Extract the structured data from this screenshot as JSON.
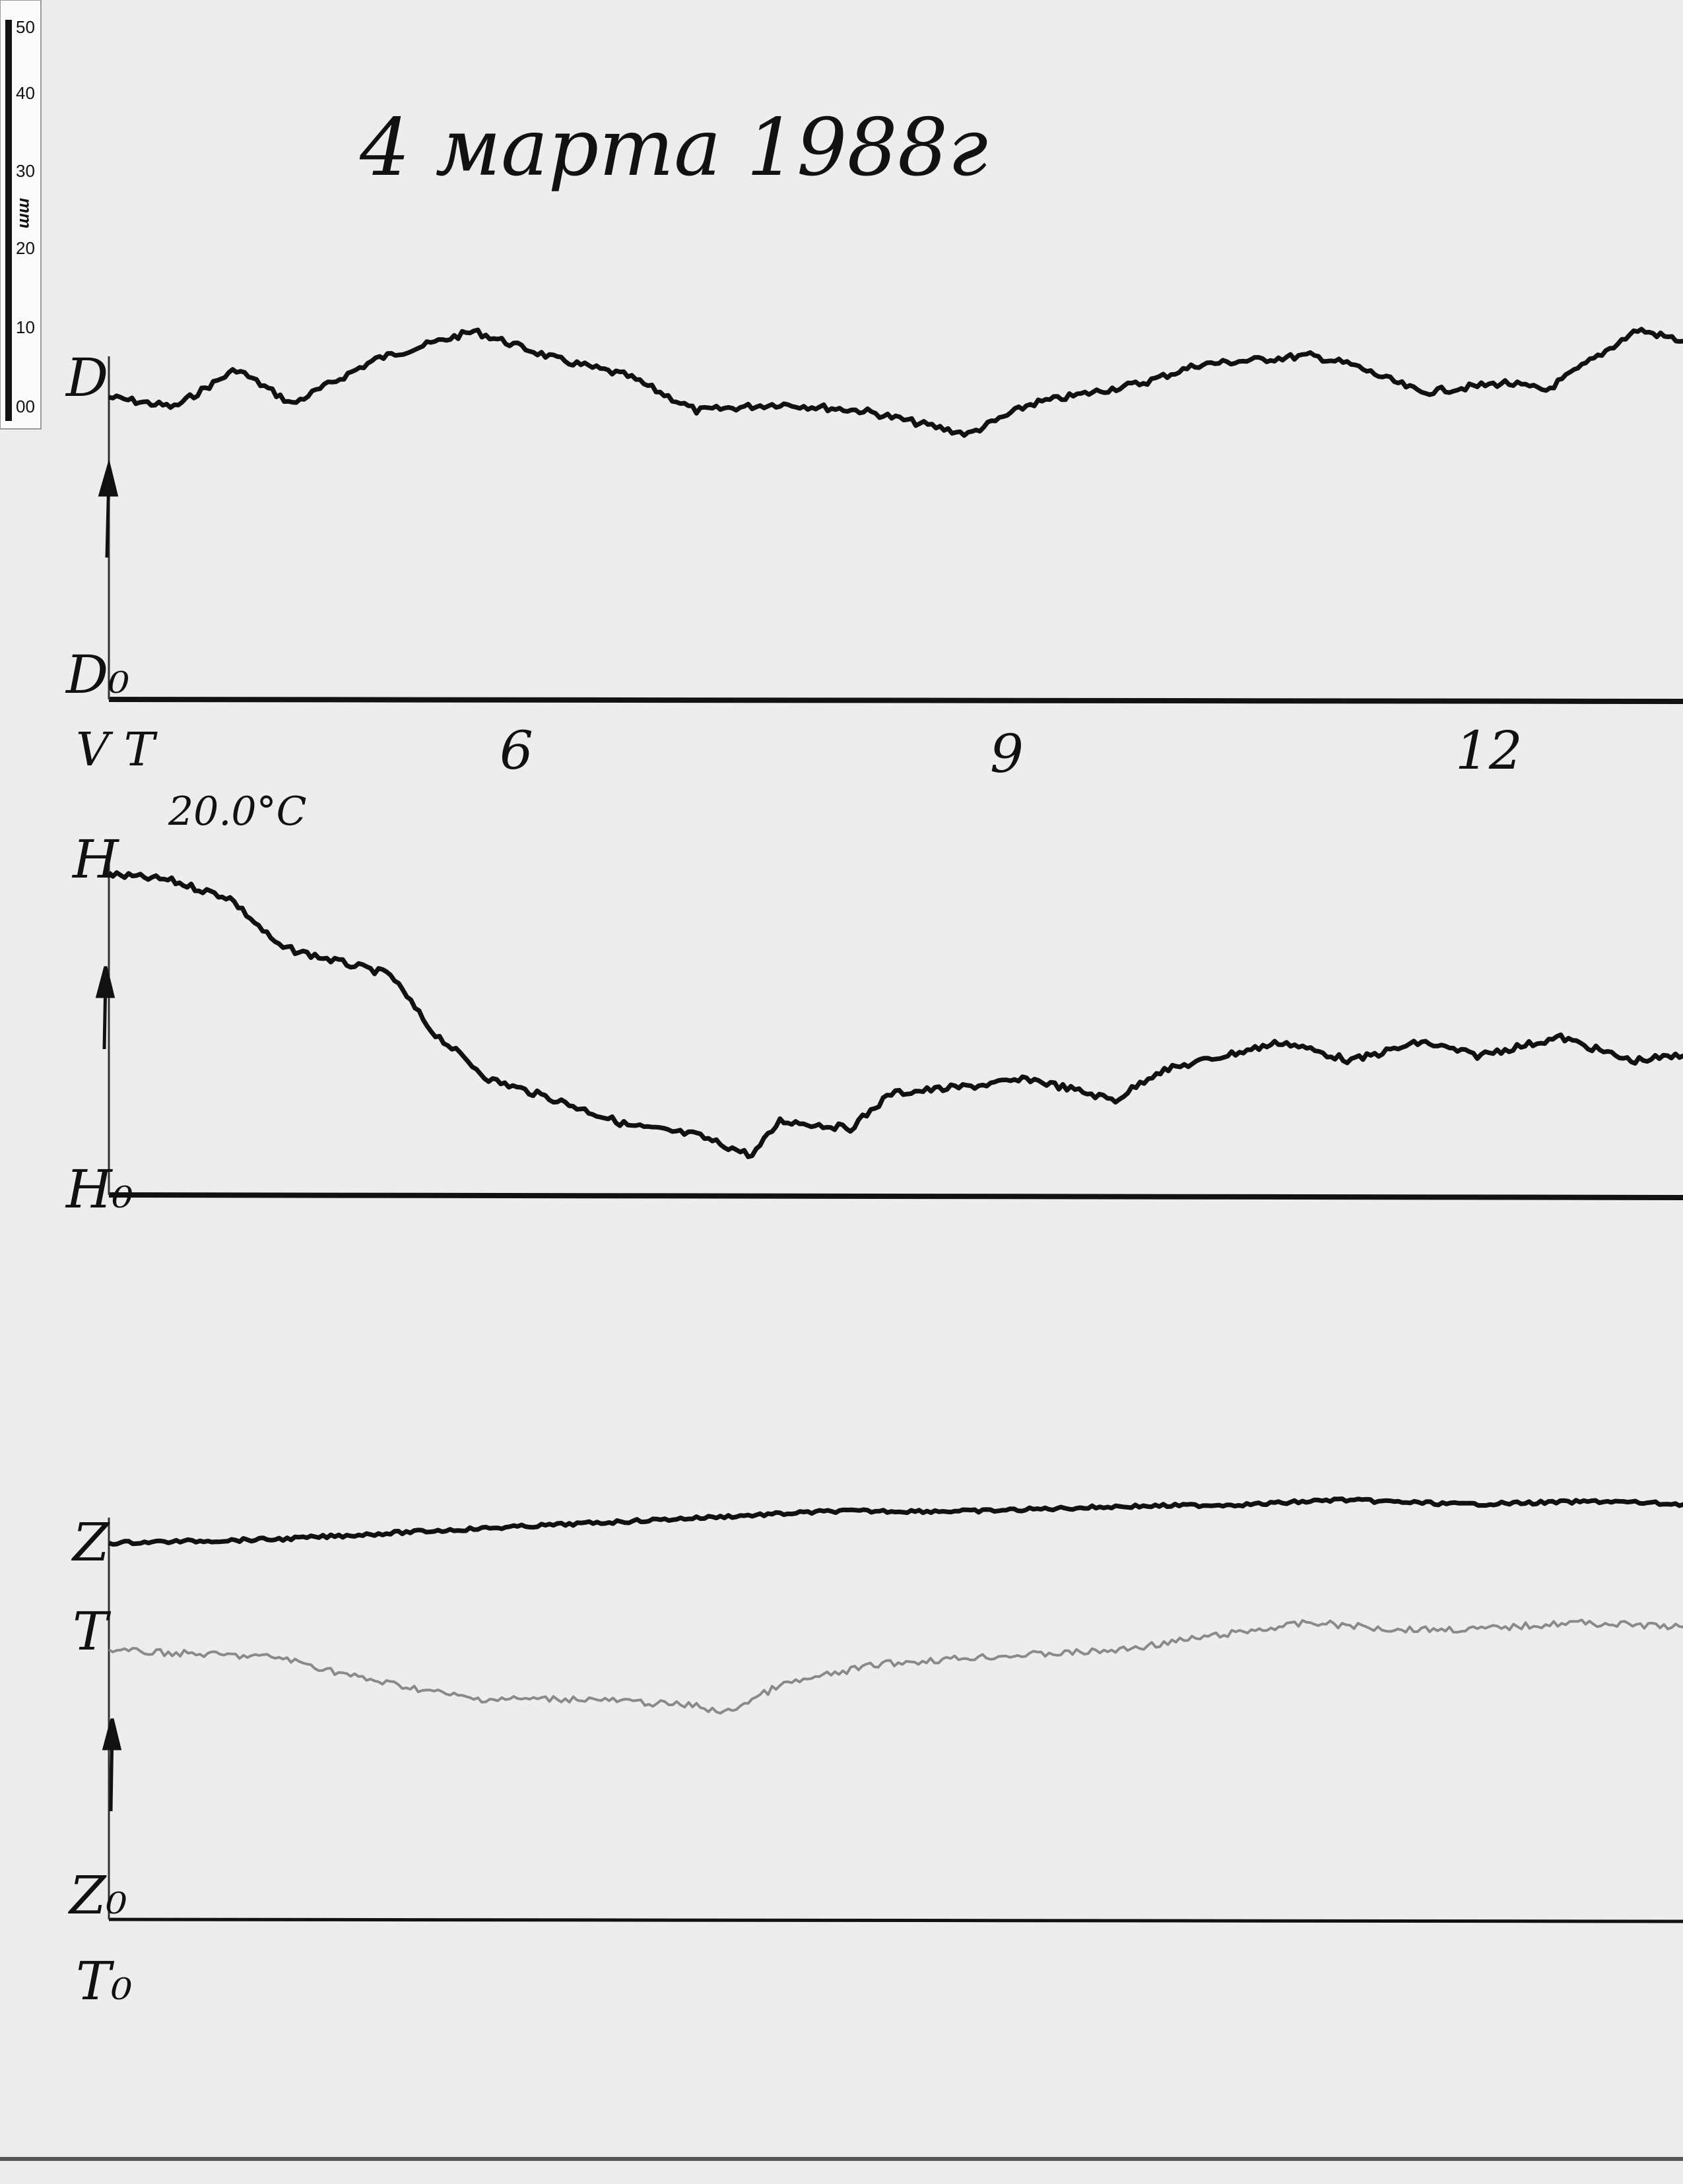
{
  "title": "4 марта 1988г",
  "scale_bar": {
    "unit": "mm",
    "ticks": [
      "50",
      "40",
      "30",
      "20",
      "10",
      "00"
    ]
  },
  "annotations": {
    "start_mark": "V T",
    "temperature": "20.0°C"
  },
  "chart_data": {
    "type": "line",
    "title": "4 марта 1988г",
    "x_unit": "hour",
    "x_ticks": [
      6,
      9,
      12
    ],
    "x_tick_labels": [
      "6",
      "9",
      "12"
    ],
    "xlim": [
      3.53,
      13.15
    ],
    "y_unit": "mm above baseline",
    "grid": false,
    "colors": {
      "ink": "#111111",
      "T_trace": "#8a8a8a",
      "paper": "#ededed"
    },
    "panels": [
      {
        "trace_label": "D",
        "baseline_label": "D₀",
        "series": [
          {
            "name": "D",
            "x": [
              3.53,
              3.93,
              4.31,
              4.65,
              5.16,
              5.76,
              6.27,
              6.7,
              7.12,
              7.63,
              8.14,
              8.78,
              9.16,
              9.85,
              10.19,
              10.87,
              11.12,
              11.55,
              12.06,
              12.31,
              12.87,
              13.15
            ],
            "y": [
              39.9,
              38.6,
              43.6,
              39.0,
              44.9,
              48.6,
              44.9,
              42.7,
              38.1,
              39.0,
              38.1,
              35.0,
              39.0,
              41.8,
              44.2,
              45.4,
              44.2,
              40.5,
              41.8,
              40.8,
              48.8,
              47.3
            ]
          }
        ]
      },
      {
        "trace_label": "H",
        "baseline_label": "H₀",
        "series": [
          {
            "name": "H",
            "x": [
              3.53,
              3.89,
              4.27,
              4.57,
              4.91,
              5.25,
              5.5,
              5.85,
              6.27,
              6.7,
              7.12,
              7.46,
              7.63,
              8.06,
              8.31,
              8.82,
              9.16,
              9.68,
              9.93,
              10.27,
              10.7,
              11.12,
              11.55,
              11.89,
              12.4,
              12.83,
              13.15
            ],
            "y": [
              42.3,
              41.6,
              39.2,
              32.8,
              30.9,
              29.1,
              21.7,
              15.3,
              12.5,
              9.2,
              7.9,
              5.2,
              9.8,
              8.8,
              13.4,
              14.4,
              15.3,
              12.5,
              16.2,
              18.0,
              20.2,
              17.7,
              20.2,
              18.4,
              20.8,
              17.7,
              18.4
            ]
          }
        ]
      },
      {
        "trace_label": "Z",
        "baseline_label": "Z₀",
        "extra_labels": [
          "T",
          "T₀"
        ],
        "series": [
          {
            "name": "Z",
            "x": [
              3.53,
              4.57,
              5.42,
              6.27,
              7.12,
              7.97,
              8.82,
              9.68,
              10.53,
              11.04,
              11.8,
              12.66,
              13.15
            ],
            "y": [
              49.7,
              50.2,
              51.2,
              52.1,
              53.0,
              53.9,
              53.9,
              54.5,
              54.8,
              55.4,
              54.8,
              55.2,
              54.8
            ]
          },
          {
            "name": "T",
            "x": [
              3.53,
              4.57,
              5.08,
              5.76,
              6.44,
              7.12,
              7.29,
              7.63,
              8.23,
              8.82,
              9.68,
              10.27,
              10.87,
              11.38,
              11.89,
              12.48,
              13.15
            ],
            "y": [
              35.5,
              34.6,
              31.8,
              29.1,
              29.1,
              28.2,
              27.2,
              30.9,
              33.7,
              34.6,
              35.5,
              37.4,
              39.2,
              38.3,
              38.3,
              39.2,
              38.6
            ]
          }
        ]
      }
    ]
  }
}
